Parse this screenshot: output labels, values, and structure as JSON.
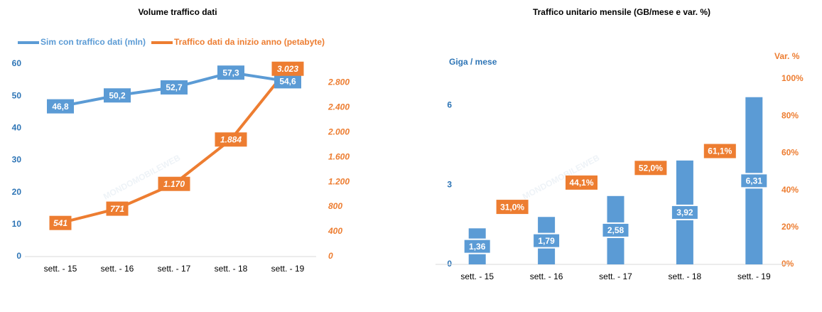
{
  "watermark": "MONDOMOBILEWEB",
  "chart_data": [
    {
      "type": "line",
      "title": "Volume traffico dati",
      "categories": [
        "sett. - 15",
        "sett. - 16",
        "sett. - 17",
        "sett. - 18",
        "sett. - 19"
      ],
      "series": [
        {
          "name": "Sim con traffico dati (mln)",
          "color": "#5b9bd5",
          "values": [
            46.8,
            50.2,
            52.7,
            57.3,
            54.6
          ],
          "value_labels": [
            "46,8",
            "50,2",
            "52,7",
            "57,3",
            "54,6"
          ]
        },
        {
          "name": "Traffico dati da inizio anno (petabyte)",
          "color": "#ed7d31",
          "axis": "y2",
          "values": [
            541,
            771,
            1170,
            1884,
            3023
          ],
          "value_labels": [
            "541",
            "771",
            "1.170",
            "1.884",
            "3.023"
          ]
        }
      ],
      "ylim": [
        0,
        60
      ],
      "yticks": [
        0,
        10,
        20,
        30,
        40,
        50,
        60
      ],
      "y2lim": [
        0,
        3100
      ],
      "y2ticks": [
        0,
        400,
        800,
        {
          "value": 1200,
          "label": "1.200"
        },
        {
          "value": 1600,
          "label": "1.600"
        },
        {
          "value": 2000,
          "label": "2.000"
        },
        {
          "value": 2400,
          "label": "2.400"
        },
        {
          "value": 2800,
          "label": "2.800"
        }
      ],
      "legend": "top"
    },
    {
      "type": "bar",
      "title": "Traffico unitario mensile (GB/mese e var. %)",
      "ylabel": "Giga  / mese",
      "y2label": "Var. %",
      "categories": [
        "sett. - 15",
        "sett. - 16",
        "sett. - 17",
        "sett. - 18",
        "sett. - 19"
      ],
      "series": [
        {
          "color": "#5b9bd5",
          "values": [
            1.36,
            1.79,
            2.58,
            3.92,
            6.31
          ],
          "value_labels": [
            "1,36",
            "1,79",
            "2,58",
            "3,92",
            "6,31"
          ]
        },
        {
          "color": "#ed7d31",
          "axis": "y2",
          "values": [
            null,
            31.0,
            44.1,
            52.0,
            61.1
          ],
          "value_labels": [
            null,
            "31,0%",
            "44,1%",
            "52,0%",
            "61,1%"
          ]
        }
      ],
      "ylim": [
        0,
        7
      ],
      "yticks": [
        0,
        3,
        6
      ],
      "y2lim": [
        0,
        100
      ],
      "y2ticks": [
        {
          "value": 0,
          "label": "0%"
        },
        {
          "value": 20,
          "label": "20%"
        },
        {
          "value": 40,
          "label": "40%"
        },
        {
          "value": 60,
          "label": "60%"
        },
        {
          "value": 80,
          "label": "80%"
        },
        {
          "value": 100,
          "label": "100%"
        }
      ]
    }
  ]
}
